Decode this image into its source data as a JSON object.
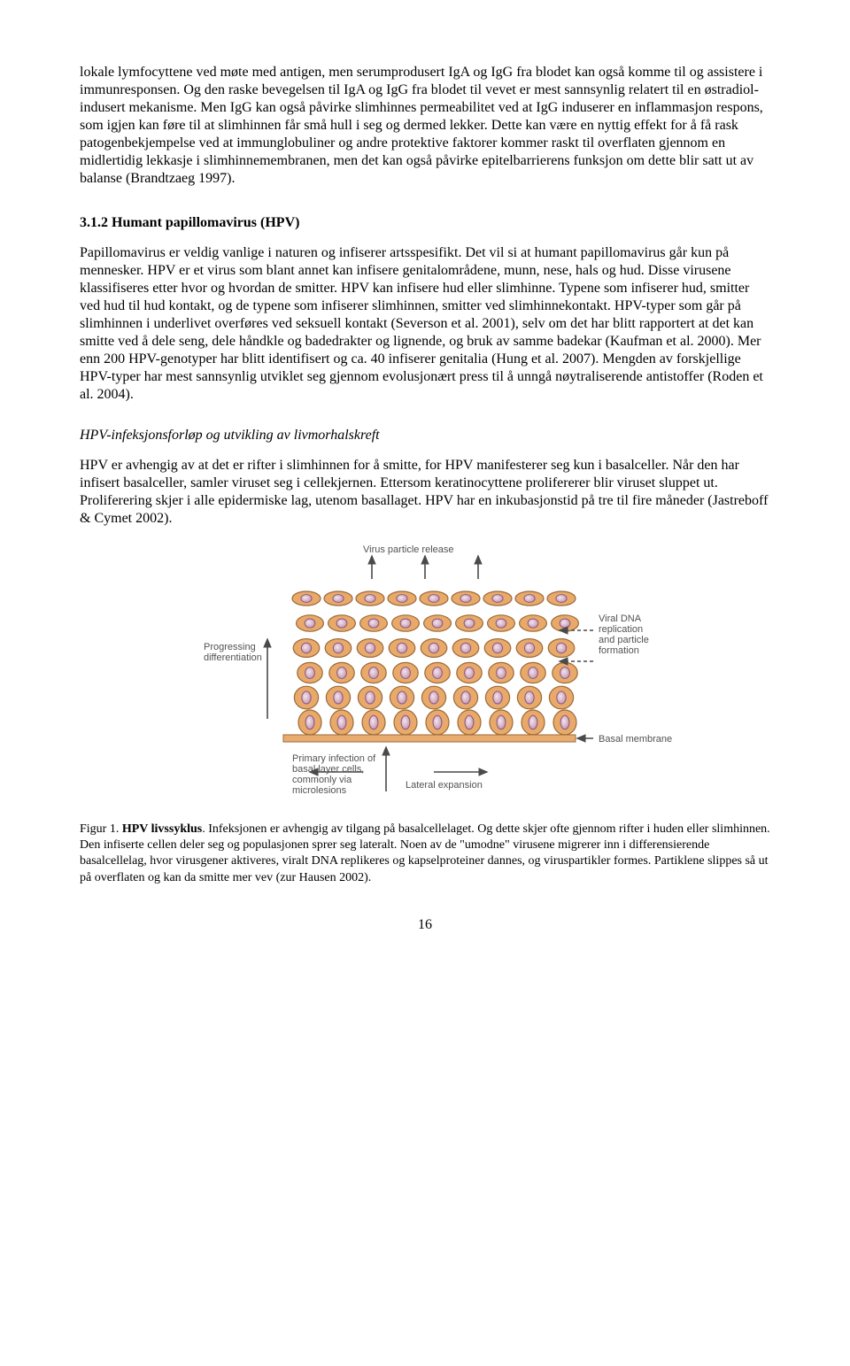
{
  "paragraphs": {
    "p1": "lokale lymfocyttene ved møte med antigen, men serumprodusert IgA og IgG fra blodet kan også komme til og assistere i immunresponsen. Og den raske bevegelsen til IgA og IgG fra blodet til vevet er mest sannsynlig relatert til en østradiol-indusert mekanisme. Men IgG kan også påvirke slimhinnes permeabilitet ved at IgG induserer en inflammasjon respons, som igjen kan føre til at slimhinnen får små hull i seg og dermed lekker. Dette kan være en nyttig effekt for å få rask patogenbekjempelse ved at immunglobuliner og andre protektive faktorer kommer raskt til overflaten gjennom en midlertidig lekkasje i slimhinnemembranen, men det kan også påvirke epitelbarrierens funksjon om dette blir satt ut av balanse (Brandtzaeg 1997).",
    "h1": "3.1.2 Humant papillomavirus (HPV)",
    "p2": "Papillomavirus er veldig vanlige i naturen og infiserer artsspesifikt. Det vil si at humant papillomavirus går kun på mennesker. HPV er et virus som blant annet kan infisere genitalområdene, munn, nese, hals og hud. Disse virusene klassifiseres etter hvor og hvordan de smitter. HPV kan infisere hud eller slimhinne. Typene som infiserer hud, smitter ved hud til hud kontakt, og de typene som infiserer slimhinnen, smitter ved slimhinnekontakt. HPV-typer som går på slimhinnen i underlivet overføres ved seksuell kontakt (Severson et al. 2001), selv om det har blitt rapportert at det kan smitte ved å dele seng, dele håndkle og badedrakter og lignende, og bruk av samme badekar (Kaufman et al. 2000). Mer enn 200 HPV-genotyper har blitt identifisert og ca. 40 infiserer genitalia (Hung et al. 2007). Mengden av forskjellige HPV-typer har mest sannsynlig utviklet seg gjennom evolusjonært press til å unngå nøytraliserende antistoffer (Roden et al. 2004).",
    "h2": "HPV-infeksjonsforløp og utvikling av livmorhalskreft",
    "p3": "HPV er avhengig av at det er rifter i slimhinnen for å smitte, for HPV manifesterer seg kun i basalceller. Når den har infisert basalceller, samler viruset seg i cellekjernen. Ettersom keratinocyttene prolifererer blir viruset sluppet ut. Proliferering skjer i alle epidermiske lag, utenom basallaget. HPV har en inkubasjonstid på tre til fire måneder (Jastreboff & Cymet 2002)."
  },
  "figure": {
    "labels": {
      "virus_release": "Virus particle release",
      "progressing": "Progressing differentiation",
      "primary": "Primary infection of basal layer cells, commonly via microlesions",
      "lateral": "Lateral expansion",
      "viral_dna": "Viral DNA replication and particle formation",
      "basal_membrane": "Basal membrane"
    },
    "colors": {
      "cell_fill": "#e8a96a",
      "cell_stroke": "#9b6a36",
      "nucleus_light": "#f4e4ef",
      "nucleus_dark": "#c79bb6",
      "nucleus_stroke": "#8a5a7a",
      "membrane": "#e8a96a",
      "label": "#525252",
      "arrow": "#4a4a4a"
    }
  },
  "caption": {
    "figlabel": "Figur 1. ",
    "figtitle": "HPV livssyklus",
    "text": ". Infeksjonen er avhengig av tilgang på basalcellelaget. Og dette skjer ofte gjennom rifter i huden eller slimhinnen. Den infiserte cellen deler seg og populasjonen sprer seg lateralt. Noen av de \"umodne\" virusene migrerer inn i differensierende basalcellelag, hvor virusgener aktiveres, viralt DNA replikeres og kapselproteiner dannes, og viruspartikler formes. Partiklene slippes så ut på overflaten og kan da smitte mer vev (zur Hausen 2002)."
  },
  "page_number": "16"
}
